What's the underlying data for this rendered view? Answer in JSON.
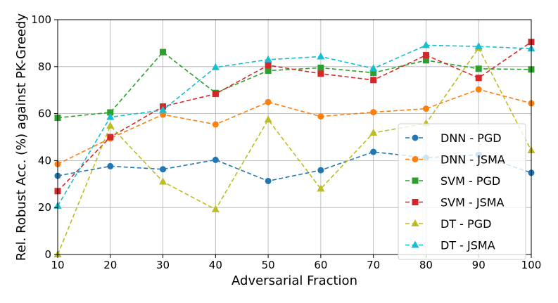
{
  "chart_data": {
    "type": "line",
    "xlabel": "Adversarial Fraction",
    "ylabel": "Rel. Robust Acc. (%) against PK-Greedy",
    "xlim": [
      10,
      100
    ],
    "ylim": [
      0,
      100
    ],
    "xticks": [
      10,
      20,
      30,
      40,
      50,
      60,
      70,
      80,
      90,
      100
    ],
    "yticks": [
      0,
      20,
      40,
      60,
      80,
      100
    ],
    "grid": true,
    "legend_position": "lower-right",
    "x": [
      10,
      20,
      30,
      40,
      50,
      60,
      70,
      80,
      90,
      100
    ],
    "series": [
      {
        "name": "DNN - PGD",
        "color": "#1f77b4",
        "marker": "circle",
        "values": [
          33.5,
          37.6,
          36.3,
          40.3,
          31.3,
          35.9,
          43.7,
          41.2,
          42.5,
          34.8
        ]
      },
      {
        "name": "DNN - JSMA",
        "color": "#ff7f0e",
        "marker": "circle",
        "values": [
          38.5,
          49.5,
          59.6,
          55.4,
          64.9,
          58.8,
          60.6,
          62.1,
          70.3,
          64.4
        ]
      },
      {
        "name": "SVM - PGD",
        "color": "#2ca02c",
        "marker": "square",
        "values": [
          58.2,
          60.5,
          86.2,
          68.8,
          78.3,
          79.5,
          77.4,
          82.7,
          79.1,
          78.8
        ]
      },
      {
        "name": "SVM - JSMA",
        "color": "#d62728",
        "marker": "square",
        "values": [
          27.0,
          50.0,
          63.0,
          68.4,
          80.6,
          77.0,
          74.3,
          84.9,
          75.2,
          90.5
        ]
      },
      {
        "name": "DT - PGD",
        "color": "#bcbd22",
        "marker": "triangle",
        "values": [
          0.0,
          54.8,
          31.0,
          19.2,
          57.4,
          28.0,
          51.8,
          55.8,
          87.9,
          44.3
        ]
      },
      {
        "name": "DT - JSMA",
        "color": "#17becf",
        "marker": "triangle",
        "values": [
          20.7,
          58.5,
          61.5,
          79.7,
          83.0,
          84.3,
          79.2,
          89.1,
          88.6,
          87.7
        ]
      }
    ]
  }
}
